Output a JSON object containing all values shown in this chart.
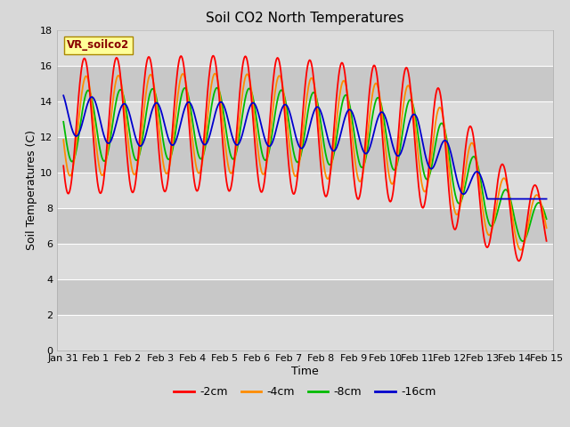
{
  "title": "Soil CO2 North Temperatures",
  "xlabel": "Time",
  "ylabel": "Soil Temperatures (C)",
  "ylim": [
    0,
    18
  ],
  "yticks": [
    0,
    2,
    4,
    6,
    8,
    10,
    12,
    14,
    16,
    18
  ],
  "xtick_labels": [
    "Jan 31",
    "Feb 1",
    "Feb 2",
    "Feb 3",
    "Feb 4",
    "Feb 5",
    "Feb 6",
    "Feb 7",
    "Feb 8",
    "Feb 9",
    "Feb 10",
    "Feb 11",
    "Feb 12",
    "Feb 13",
    "Feb 14",
    "Feb 15"
  ],
  "legend_label": "VR_soilco2",
  "series_labels": [
    "-2cm",
    "-4cm",
    "-8cm",
    "-16cm"
  ],
  "series_colors": [
    "#FF0000",
    "#FF8C00",
    "#00BB00",
    "#0000CC"
  ],
  "fig_bg_color": "#D8D8D8",
  "plot_bg_color": "#E8E8E8",
  "band_color": "#D0D0D0",
  "annotation_box_color": "#FFFF99",
  "annotation_text_color": "#880000",
  "title_fontsize": 11,
  "axis_label_fontsize": 9,
  "tick_fontsize": 8
}
